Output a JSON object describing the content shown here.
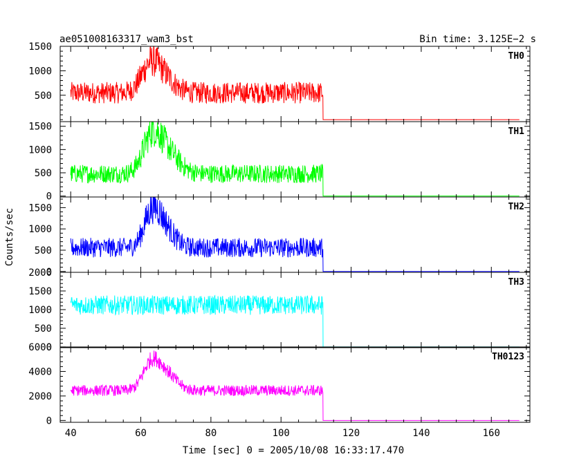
{
  "chart_data": {
    "type": "line",
    "title": "ae051008163317_wam3_bst",
    "subtitle": "Bin time: 3.125E−2 s",
    "xlabel": "Time [sec] 0 = 2005/10/08 16:33:17.470",
    "ylabel": "Counts/sec",
    "xlim": [
      37,
      171
    ],
    "x_ticks": [
      "40",
      "60",
      "80",
      "100",
      "120",
      "140",
      "160"
    ],
    "data_end_x": 112,
    "series_end_x": 168,
    "panels": [
      {
        "name": "TH0",
        "color": "#ff0000",
        "ylim": [
          -40,
          1500
        ],
        "y_ticks": [
          "500",
          "1000",
          "1500"
        ],
        "y_tick_values": [
          500,
          1000,
          1500
        ],
        "show_zero": false,
        "baseline": 550,
        "noise": 220,
        "peaks": [
          {
            "t": 62.5,
            "amp": 500,
            "w": 2.5
          },
          {
            "t": 66.5,
            "amp": 320,
            "w": 3
          }
        ],
        "after_value": 0
      },
      {
        "name": "TH1",
        "color": "#00ff00",
        "ylim": [
          -20,
          1600
        ],
        "y_ticks": [
          "0",
          "500",
          "1000",
          "1500"
        ],
        "y_tick_values": [
          0,
          500,
          1000,
          1500
        ],
        "show_zero": true,
        "baseline": 480,
        "noise": 200,
        "peaks": [
          {
            "t": 63,
            "amp": 650,
            "w": 2.5
          },
          {
            "t": 67,
            "amp": 500,
            "w": 3.5
          }
        ],
        "after_value": 0
      },
      {
        "name": "TH2",
        "color": "#0000ff",
        "ylim": [
          -20,
          1750
        ],
        "y_ticks": [
          "0",
          "500",
          "1000",
          "1500"
        ],
        "y_tick_values": [
          0,
          500,
          1000,
          1500
        ],
        "show_zero": true,
        "baseline": 560,
        "noise": 230,
        "peaks": [
          {
            "t": 63,
            "amp": 700,
            "w": 2.2
          },
          {
            "t": 66.5,
            "amp": 500,
            "w": 2.8
          }
        ],
        "after_value": 0
      },
      {
        "name": "TH3",
        "color": "#00ffff",
        "ylim": [
          -20,
          2000
        ],
        "y_ticks": [
          "0",
          "500",
          "1000",
          "1500",
          "2000"
        ],
        "y_tick_values": [
          0,
          500,
          1000,
          1500,
          2000
        ],
        "show_zero": true,
        "baseline": 1120,
        "noise": 260,
        "peaks": [],
        "after_value": 0
      },
      {
        "name": "TH0123",
        "color": "#ff00ff",
        "ylim": [
          -150,
          6000
        ],
        "y_ticks": [
          "0",
          "2000",
          "4000",
          "6000"
        ],
        "y_tick_values": [
          0,
          2000,
          4000,
          6000
        ],
        "show_zero": true,
        "baseline": 2450,
        "noise": 450,
        "peaks": [
          {
            "t": 62.8,
            "amp": 1900,
            "w": 2.3
          },
          {
            "t": 66.8,
            "amp": 1500,
            "w": 3
          }
        ],
        "after_value": 0
      }
    ]
  }
}
